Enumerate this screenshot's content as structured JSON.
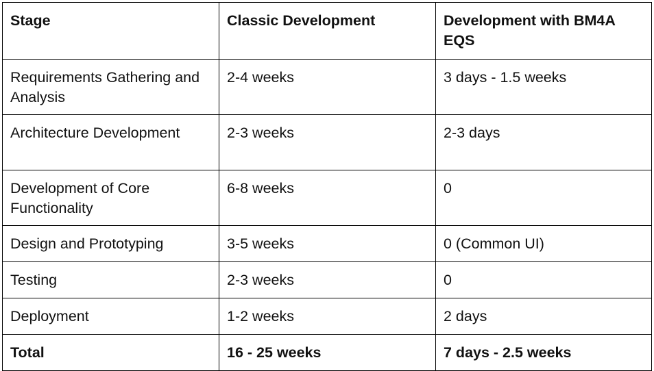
{
  "table": {
    "headers": [
      "Stage",
      "Classic Development",
      "Development with BM4A EQS"
    ],
    "rows": [
      [
        "Requirements Gathering and Analysis",
        "2-4 weeks",
        "3 days - 1.5 weeks"
      ],
      [
        "Architecture Development",
        "2-3 weeks",
        "2-3 days"
      ],
      [
        "Development of Core Functionality",
        "6-8 weeks",
        "0"
      ],
      [
        "Design and Prototyping",
        "3-5 weeks",
        "0 (Common UI)"
      ],
      [
        "Testing",
        "2-3 weeks",
        "0"
      ],
      [
        "Deployment",
        "1-2 weeks",
        "2 days"
      ]
    ],
    "total": [
      "Total",
      "16 - 25 weeks",
      "7 days - 2.5 weeks"
    ]
  }
}
